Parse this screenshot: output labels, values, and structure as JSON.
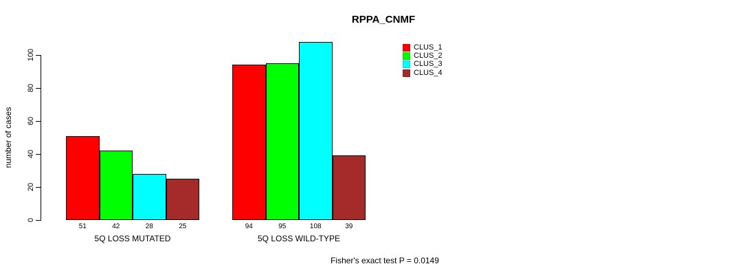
{
  "title": "RPPA_CNMF",
  "footer": "Fisher's exact test P = 0.0149",
  "colors": {
    "background": "#ffffff",
    "axis": "#000000",
    "clus1": "#ff0000",
    "clus2": "#00ff00",
    "clus3": "#00ffff",
    "clus4": "#a52a2a"
  },
  "legend": {
    "position": "top-right",
    "items": [
      {
        "label": "CLUS_1",
        "color": "#ff0000"
      },
      {
        "label": "CLUS_2",
        "color": "#00ff00"
      },
      {
        "label": "CLUS_3",
        "color": "#00ffff"
      },
      {
        "label": "CLUS_4",
        "color": "#a52a2a"
      }
    ]
  },
  "chart_data": {
    "type": "bar",
    "title": "RPPA_CNMF",
    "xlabel": "",
    "ylabel": "number of cases",
    "categories": [
      "5Q LOSS MUTATED",
      "5Q LOSS WILD-TYPE"
    ],
    "series": [
      {
        "name": "CLUS_1",
        "color": "#ff0000",
        "values": [
          51,
          94
        ]
      },
      {
        "name": "CLUS_2",
        "color": "#00ff00",
        "values": [
          42,
          95
        ]
      },
      {
        "name": "CLUS_3",
        "color": "#00ffff",
        "values": [
          28,
          108
        ]
      },
      {
        "name": "CLUS_4",
        "color": "#a52a2a",
        "values": [
          25,
          39
        ]
      }
    ],
    "bar_value_labels": [
      [
        51,
        42,
        28,
        25
      ],
      [
        94,
        95,
        108,
        39
      ]
    ],
    "yticks": [
      0,
      20,
      40,
      60,
      80,
      100
    ],
    "ylim": [
      0,
      112
    ],
    "grid": false,
    "legend_position": "top-right",
    "annotation": "Fisher's exact test P = 0.0149"
  }
}
